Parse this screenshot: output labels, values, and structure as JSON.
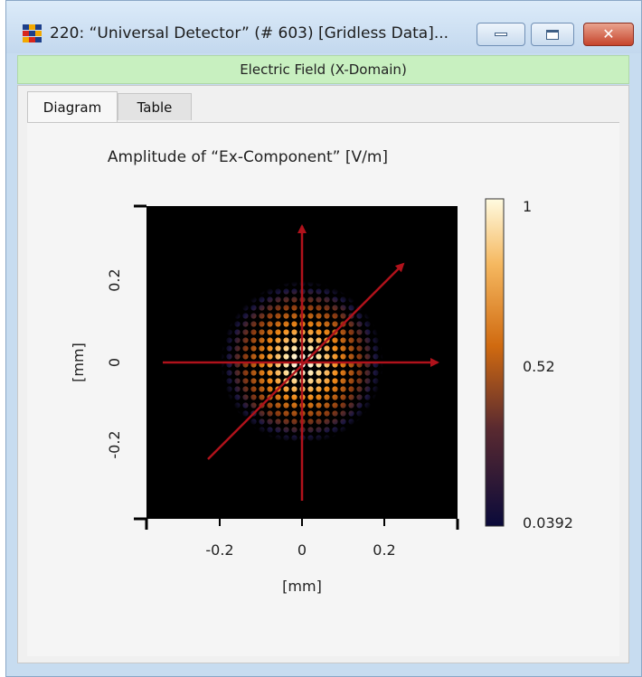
{
  "window": {
    "title": "220: “Universal Detector” (# 603) [Gridless Data]..."
  },
  "header": {
    "text": "Electric Field (X-Domain)"
  },
  "tabs": [
    {
      "label": "Diagram",
      "active": true
    },
    {
      "label": "Table",
      "active": false
    }
  ],
  "plot": {
    "title": "Amplitude of “Ex-Component”  [V/m]",
    "xlabel": "[mm]",
    "ylabel": "[mm]",
    "x_ticks": [
      "-0.2",
      "0",
      "0.2"
    ],
    "y_ticks": [
      "0.2",
      "0",
      "-0.2"
    ],
    "colorbar_ticks": [
      "1",
      "0.52",
      "0.0392"
    ]
  },
  "chart_data": {
    "type": "heatmap",
    "title": "Amplitude of “Ex-Component”  [V/m]",
    "xlabel": "[mm]",
    "ylabel": "[mm]",
    "xlim": [
      -0.38,
      0.38
    ],
    "ylim": [
      -0.38,
      0.38
    ],
    "x_ticks": [
      -0.2,
      0,
      0.2
    ],
    "y_ticks": [
      -0.2,
      0,
      0.2
    ],
    "colorbar": {
      "min": 0.0392,
      "max": 1,
      "ticks": [
        0.0392,
        0.52,
        1
      ]
    },
    "description_values": {
      "spot_radius_mm": 0.19,
      "peak_amplitude": 1
    },
    "annotation_arrows": [
      {
        "from": [
          0,
          -0.33
        ],
        "to": [
          0,
          0.34
        ]
      },
      {
        "from": [
          -0.34,
          0
        ],
        "to": [
          0.33,
          0
        ]
      },
      {
        "from": [
          -0.23,
          -0.23
        ],
        "to": [
          0.25,
          0.24
        ]
      }
    ]
  },
  "colors": {
    "arrow": "#b0121b",
    "plot_bg": "#000000",
    "header_band": "#c8f0c0"
  }
}
